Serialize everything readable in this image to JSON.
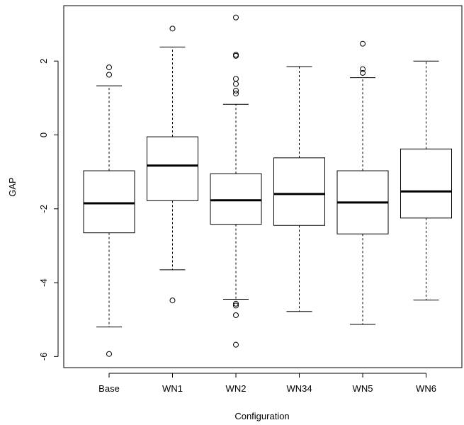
{
  "chart_data": {
    "type": "box",
    "xlabel": "Configuration",
    "ylabel": "GAP",
    "ylim": [
      -6.3,
      3.5
    ],
    "y_ticks": [
      -6,
      -4,
      -2,
      0,
      2
    ],
    "y_tick_labels": [
      "-6",
      "-4",
      "-2",
      "0",
      "2"
    ],
    "grid": false,
    "categories": [
      "Base",
      "WN1",
      "WN2",
      "WN34",
      "WN5",
      "WN6"
    ],
    "boxes": [
      {
        "name": "Base",
        "whisker_low": -5.2,
        "q1": -2.65,
        "median": -1.85,
        "q3": -0.97,
        "whisker_high": 1.33,
        "outliers": [
          1.83,
          1.63,
          -5.93
        ]
      },
      {
        "name": "WN1",
        "whisker_low": -3.65,
        "q1": -1.78,
        "median": -0.83,
        "q3": -0.05,
        "whisker_high": 2.38,
        "outliers": [
          2.88,
          -4.48
        ]
      },
      {
        "name": "WN2",
        "whisker_low": -4.45,
        "q1": -2.42,
        "median": -1.77,
        "q3": -1.05,
        "whisker_high": 0.83,
        "outliers": [
          3.18,
          2.17,
          2.14,
          1.52,
          1.38,
          1.2,
          1.12,
          -4.57,
          -4.62,
          -4.88,
          -5.68
        ]
      },
      {
        "name": "WN34",
        "whisker_low": -4.78,
        "q1": -2.45,
        "median": -1.6,
        "q3": -0.62,
        "whisker_high": 1.85,
        "outliers": []
      },
      {
        "name": "WN5",
        "whisker_low": -5.13,
        "q1": -2.68,
        "median": -1.83,
        "q3": -0.97,
        "whisker_high": 1.55,
        "outliers": [
          2.47,
          1.78,
          1.68
        ]
      },
      {
        "name": "WN6",
        "whisker_low": -4.47,
        "q1": -2.25,
        "median": -1.53,
        "q3": -0.38,
        "whisker_high": 2.0,
        "outliers": []
      }
    ]
  }
}
